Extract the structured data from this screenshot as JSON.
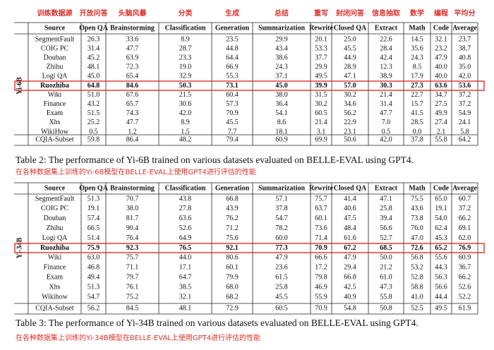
{
  "header_zh": [
    "训练数据源",
    "开放问答",
    "头脑风暴",
    "分类",
    "生成",
    "总结",
    "重写",
    "封闭问答",
    "信息抽取",
    "数学",
    "编程",
    "平均分"
  ],
  "tables": [
    {
      "model": "Yi-6B",
      "columns": [
        "Source",
        "Open QA",
        "Brainstorming",
        "Classification",
        "Generation",
        "Summarization",
        "Rewrite",
        "Closed QA",
        "Extract",
        "Math",
        "Code",
        "Average"
      ],
      "rows": [
        [
          "SegmentFault",
          "26.3",
          "33.6",
          "8.9",
          "23.5",
          "29.9",
          "20.1",
          "25.0",
          "22.6",
          "14.5",
          "32.1",
          "23.7"
        ],
        [
          "COIG PC",
          "31.4",
          "47.7",
          "28.7",
          "44.8",
          "43.4",
          "53.3",
          "45.5",
          "28.4",
          "35.6",
          "23.2",
          "38.7"
        ],
        [
          "Douban",
          "45.2",
          "63.9",
          "23.3",
          "64.4",
          "38.6",
          "37.7",
          "44.9",
          "42.4",
          "24.3",
          "47.9",
          "40.8"
        ],
        [
          "Zhihu",
          "48.1",
          "72.3",
          "19.0",
          "66.9",
          "24.3",
          "29.9",
          "28.9",
          "12.3",
          "8.5",
          "40.0",
          "35.0"
        ],
        [
          "Logi QA",
          "45.0",
          "65.4",
          "32.9",
          "55.3",
          "37.1",
          "49.5",
          "47.1",
          "38.9",
          "17.9",
          "40.0",
          "42.0"
        ],
        [
          "Ruozhiba",
          "64.8",
          "84.6",
          "50.3",
          "73.1",
          "45.0",
          "39.9",
          "57.0",
          "30.3",
          "27.3",
          "63.6",
          "53.6"
        ],
        [
          "Wiki",
          "51.0",
          "67.6",
          "21.5",
          "60.4",
          "38.0",
          "31.5",
          "30.2",
          "21.4",
          "22.7",
          "34.7",
          "37.2"
        ],
        [
          "Finance",
          "43.2",
          "65.7",
          "30.6",
          "57.3",
          "36.4",
          "30.2",
          "34.6",
          "31.4",
          "15.7",
          "27.5",
          "37.2"
        ],
        [
          "Exam",
          "51.5",
          "74.3",
          "42.0",
          "70.9",
          "54.1",
          "60.5",
          "56.2",
          "47.7",
          "41.5",
          "49.9",
          "54.9"
        ],
        [
          "Xhs",
          "25.2",
          "47.7",
          "8.9",
          "45.5",
          "8.6",
          "21.4",
          "22.9",
          "7.0",
          "28.5",
          "27.4",
          "24.1"
        ],
        [
          "WikiHow",
          "0.5",
          "1.2",
          "1.5",
          "7.7",
          "18.1",
          "3.1",
          "23.1",
          "0.5",
          "0.0",
          "2.1",
          "5.8"
        ],
        [
          "CQIA-Subset",
          "59.8",
          "86.4",
          "48.2",
          "79.4",
          "60.9",
          "69.9",
          "50.6",
          "42.0",
          "37.8",
          "55.8",
          "64.2"
        ]
      ],
      "caption": "Table 2: The performance of Yi-6B trained on various datasets evaluated on BELLE-EVAL using GPT4.",
      "caption_zh": "在各种数据集上训练的Yi-6B模型在BELLE-EVAL上使用GPT4进行评估的性能"
    },
    {
      "model": "Yi-34B",
      "columns": [
        "Source",
        "Open QA",
        "Brainstorming",
        "Classification",
        "Generation",
        "Summarization",
        "Rewrite",
        "Closed QA",
        "Extract",
        "Math",
        "Code",
        "Average"
      ],
      "rows": [
        [
          "SegmentFault",
          "51.3",
          "70.7",
          "43.8",
          "66.8",
          "57.1",
          "75.7",
          "41.4",
          "47.1",
          "75.5",
          "65.0",
          "60.7"
        ],
        [
          "COIG PC",
          "19.1",
          "38.0",
          "27.8",
          "43.9",
          "37.8",
          "63.7",
          "40.6",
          "25.8",
          "43.6",
          "19.1",
          "37.2"
        ],
        [
          "Douban",
          "57.4",
          "81.7",
          "63.6",
          "76.2",
          "54.7",
          "60.1",
          "47.5",
          "39.4",
          "73.8",
          "54.0",
          "66.2"
        ],
        [
          "Zhihu",
          "66.5",
          "90.4",
          "52.6",
          "71.2",
          "78.2",
          "73.6",
          "48.4",
          "56.6",
          "76.0",
          "62.4",
          "69.1"
        ],
        [
          "Logi QA",
          "51.4",
          "76.4",
          "64.9",
          "75.6",
          "60.0",
          "71.4",
          "61.6",
          "52.7",
          "47.0",
          "45.3",
          "62.0"
        ],
        [
          "Ruozhiba",
          "75.9",
          "92.3",
          "76.5",
          "92.1",
          "77.3",
          "70.9",
          "67.2",
          "68.5",
          "72.6",
          "65.2",
          "76.9"
        ],
        [
          "Wiki",
          "63.0",
          "75.7",
          "44.0",
          "80.6",
          "47.9",
          "66.6",
          "47.9",
          "50.0",
          "56.8",
          "55.6",
          "60.9"
        ],
        [
          "Finance",
          "46.8",
          "71.1",
          "17.1",
          "60.1",
          "23.6",
          "17.2",
          "29.4",
          "21.2",
          "53.2",
          "44.3",
          "36.7"
        ],
        [
          "Exam",
          "49.4",
          "79.7",
          "64.7",
          "79.9",
          "61.5",
          "79.8",
          "66.8",
          "61.0",
          "52.8",
          "56.3",
          "66.2"
        ],
        [
          "Xhs",
          "51.3",
          "76.1",
          "38.5",
          "68.0",
          "25.8",
          "46.9",
          "42.5",
          "47.3",
          "58.8",
          "56.6",
          "52.6"
        ],
        [
          "Wikihow",
          "54.7",
          "75.2",
          "32.1",
          "68.2",
          "45.5",
          "55.9",
          "40.9",
          "55.8",
          "41.0",
          "44.4",
          "52.2"
        ],
        [
          "CQIA-Subset",
          "56.2",
          "84.5",
          "48.1",
          "72.9",
          "60.5",
          "70.9",
          "54.8",
          "50.8",
          "52.5",
          "49.5",
          "61.9"
        ]
      ],
      "caption": "Table 3: The performance of Yi-34B trained on various datasets evaluated on BELLE-EVAL using GPT4.",
      "caption_zh": "在各种数据集上训练的Yi-34B模型在BELLE-EVAL上使用GPT4进行评估的性能"
    }
  ]
}
